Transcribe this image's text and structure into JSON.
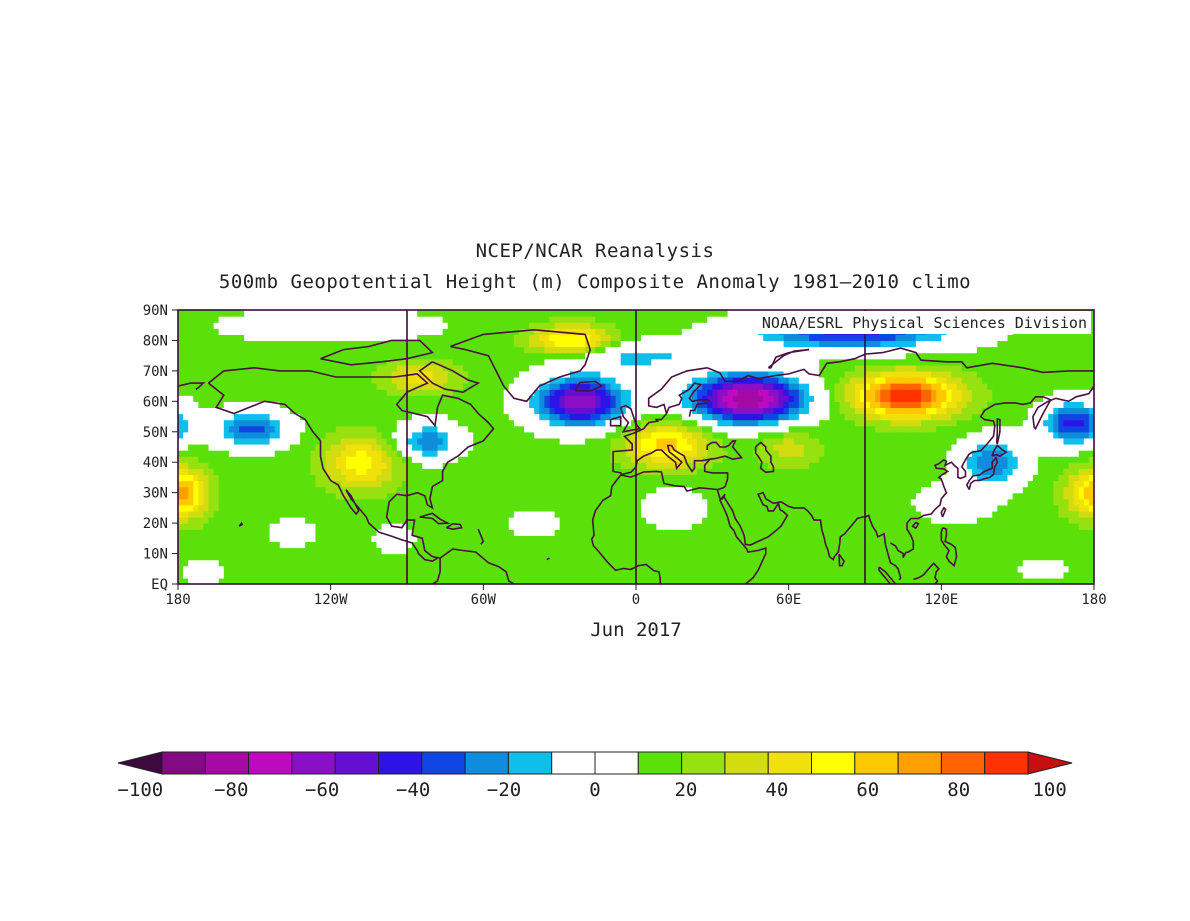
{
  "title": "NCEP/NCAR Reanalysis",
  "subtitle": "500mb Geopotential Height (m) Composite Anomaly 1981–2010 climo",
  "credit": "NOAA/ESRL Physical Sciences Division",
  "period_label": "Jun 2017",
  "map": {
    "lon_range": [
      -180,
      180
    ],
    "lat_range": [
      0,
      90
    ],
    "lon_ticks": [
      {
        "value": -180,
        "label": "180"
      },
      {
        "value": -120,
        "label": "120W"
      },
      {
        "value": -60,
        "label": "60W"
      },
      {
        "value": 0,
        "label": "0"
      },
      {
        "value": 60,
        "label": "60E"
      },
      {
        "value": 120,
        "label": "120E"
      },
      {
        "value": 180,
        "label": "180"
      }
    ],
    "lat_ticks": [
      {
        "value": 90,
        "label": "90N"
      },
      {
        "value": 80,
        "label": "80N"
      },
      {
        "value": 70,
        "label": "70N"
      },
      {
        "value": 60,
        "label": "60N"
      },
      {
        "value": 50,
        "label": "50N"
      },
      {
        "value": 40,
        "label": "40N"
      },
      {
        "value": 30,
        "label": "30N"
      },
      {
        "value": 20,
        "label": "20N"
      },
      {
        "value": 10,
        "label": "10N"
      },
      {
        "value": 0,
        "label": "EQ"
      }
    ],
    "reference_meridians": [
      -90,
      0,
      90
    ],
    "background_anomaly": 15,
    "anomaly_centers": [
      {
        "lon": 44,
        "lat": 61,
        "value": -100,
        "spread_lon": 22,
        "spread_lat": 8
      },
      {
        "lon": -22,
        "lat": 60,
        "value": -80,
        "spread_lon": 18,
        "spread_lat": 8
      },
      {
        "lon": 85,
        "lat": 83,
        "value": -55,
        "spread_lon": 40,
        "spread_lat": 6
      },
      {
        "lon": -151,
        "lat": 51,
        "value": -45,
        "spread_lon": 14,
        "spread_lat": 6
      },
      {
        "lon": -82,
        "lat": 47,
        "value": -38,
        "spread_lon": 12,
        "spread_lat": 6
      },
      {
        "lon": 172,
        "lat": 53,
        "value": -55,
        "spread_lon": 12,
        "spread_lat": 7
      },
      {
        "lon": 140,
        "lat": 40,
        "value": -40,
        "spread_lon": 12,
        "spread_lat": 8
      },
      {
        "lon": 0,
        "lat": 75,
        "value": -25,
        "spread_lon": 30,
        "spread_lat": 5
      },
      {
        "lon": -120,
        "lat": 85,
        "value": -15,
        "spread_lon": 40,
        "spread_lat": 5
      },
      {
        "lon": 106,
        "lat": 62,
        "value": 90,
        "spread_lon": 20,
        "spread_lat": 7
      },
      {
        "lon": -25,
        "lat": 80,
        "value": 55,
        "spread_lon": 16,
        "spread_lat": 5
      },
      {
        "lon": 12,
        "lat": 46,
        "value": 55,
        "spread_lon": 16,
        "spread_lat": 7
      },
      {
        "lon": -108,
        "lat": 40,
        "value": 45,
        "spread_lon": 14,
        "spread_lat": 9
      },
      {
        "lon": 178,
        "lat": 30,
        "value": 40,
        "spread_lon": 10,
        "spread_lat": 8
      },
      {
        "lon": -175,
        "lat": 30,
        "value": 35,
        "spread_lon": 8,
        "spread_lat": 8
      },
      {
        "lon": -85,
        "lat": 68,
        "value": 35,
        "spread_lon": 14,
        "spread_lat": 5
      },
      {
        "lon": 60,
        "lat": 45,
        "value": 25,
        "spread_lon": 12,
        "spread_lat": 6
      },
      {
        "lon": 15,
        "lat": 25,
        "value": -15,
        "spread_lon": 12,
        "spread_lat": 6
      },
      {
        "lon": 125,
        "lat": 27,
        "value": -15,
        "spread_lon": 14,
        "spread_lat": 6
      },
      {
        "lon": -40,
        "lat": 20,
        "value": -15,
        "spread_lon": 8,
        "spread_lat": 4
      },
      {
        "lon": -135,
        "lat": 17,
        "value": -15,
        "spread_lon": 8,
        "spread_lat": 4
      },
      {
        "lon": -170,
        "lat": 4,
        "value": -12,
        "spread_lon": 8,
        "spread_lat": 4
      },
      {
        "lon": -95,
        "lat": 15,
        "value": -10,
        "spread_lon": 8,
        "spread_lat": 5
      },
      {
        "lon": 160,
        "lat": 5,
        "value": -8,
        "spread_lon": 10,
        "spread_lat": 4
      }
    ]
  },
  "colorbar": {
    "levels": [
      -100,
      -90,
      -80,
      -70,
      -60,
      -50,
      -40,
      -30,
      -20,
      -10,
      0,
      10,
      20,
      30,
      40,
      50,
      60,
      70,
      80,
      90,
      100
    ],
    "colors": [
      "#3c0a3c",
      "#820a82",
      "#a50aa5",
      "#be0abe",
      "#8c0fc8",
      "#640fd2",
      "#2d14e6",
      "#0f46e1",
      "#0f8cdc",
      "#0fbeeb",
      "#ffffff",
      "#ffffff",
      "#5ae10a",
      "#96e10f",
      "#d2dc0f",
      "#f0e10a",
      "#ffff00",
      "#ffc800",
      "#ffa000",
      "#ff6400",
      "#ff3200",
      "#c80f0f"
    ],
    "tick_labels": [
      {
        "value": -100,
        "label": "−100"
      },
      {
        "value": -80,
        "label": "−80"
      },
      {
        "value": -60,
        "label": "−60"
      },
      {
        "value": -40,
        "label": "−40"
      },
      {
        "value": -20,
        "label": "−20"
      },
      {
        "value": 0,
        "label": "0"
      },
      {
        "value": 20,
        "label": "20"
      },
      {
        "value": 40,
        "label": "40"
      },
      {
        "value": 60,
        "label": "60"
      },
      {
        "value": 80,
        "label": "80"
      },
      {
        "value": 100,
        "label": "100"
      }
    ]
  }
}
